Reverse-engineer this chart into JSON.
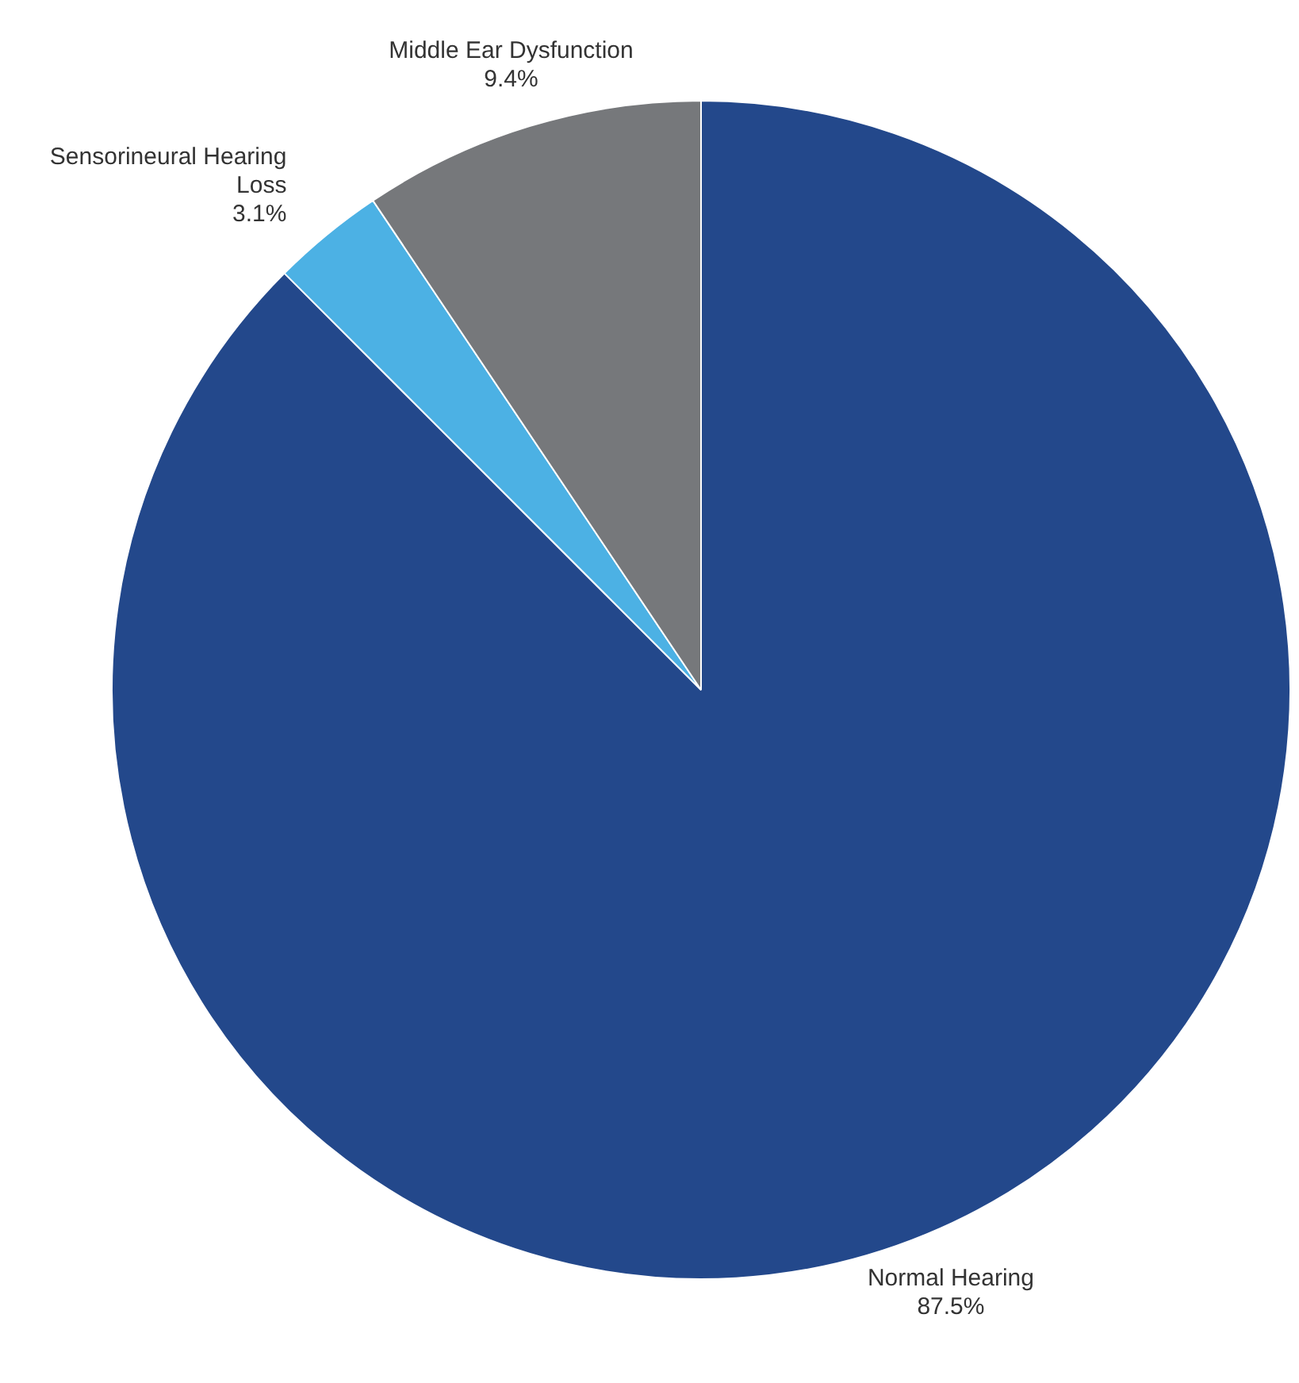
{
  "chart_data": {
    "type": "pie",
    "categories": [
      "Normal Hearing",
      "Sensorineural Hearing Loss",
      "Middle Ear Dysfunction"
    ],
    "values": [
      87.5,
      3.1,
      9.4
    ],
    "colors": [
      "#23488b",
      "#4cb1e4",
      "#76787b"
    ],
    "value_labels": [
      "87.5%",
      "3.1%",
      "9.4%"
    ],
    "legend": false
  }
}
